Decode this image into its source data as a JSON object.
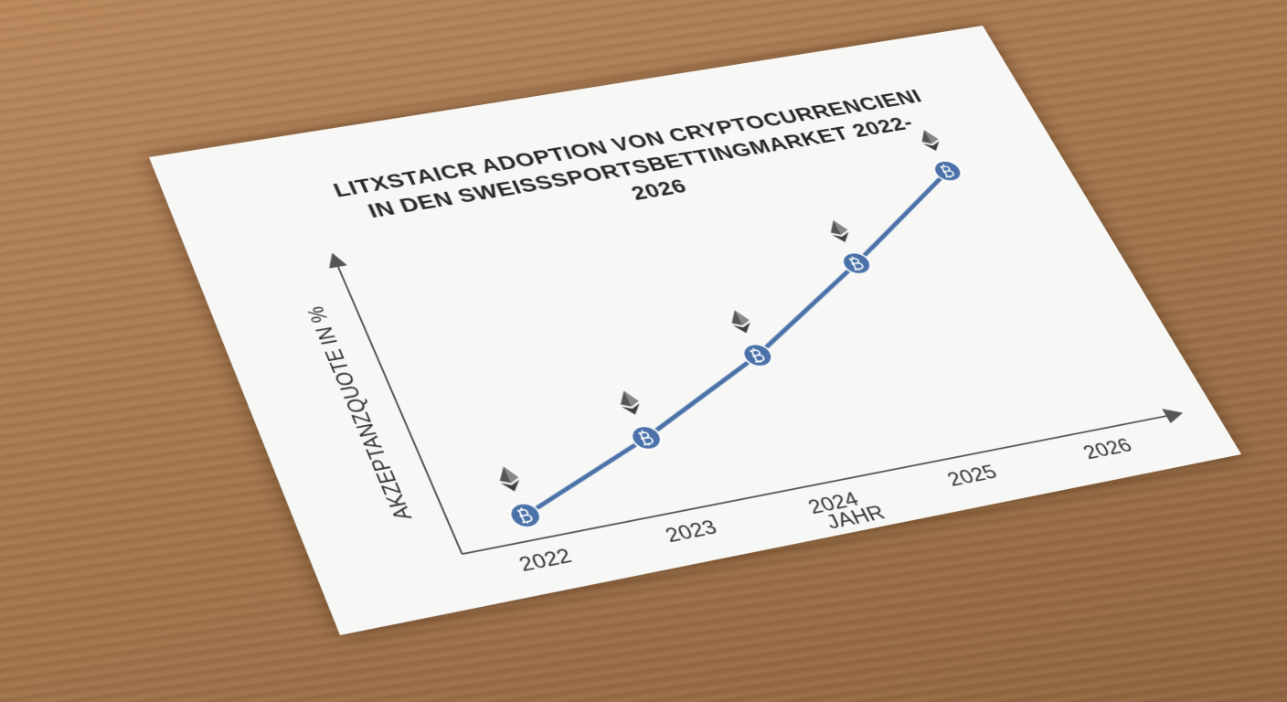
{
  "chart_data": {
    "type": "line",
    "title": "LITXSTAICR ADOPTION VON CRYPTOCURRENCIENI IN DEN SWEISSSPORTSBETTINGMARKET 2022-2026",
    "x_label": "JAHR",
    "y_label": "AKZEPTANZQUOTE IN %",
    "categories": [
      "2022",
      "2023",
      "2024",
      "2025",
      "2026"
    ],
    "values": [
      8,
      25,
      45,
      70,
      97
    ],
    "color": "#4a72a8",
    "ylim": [
      0,
      100
    ]
  }
}
